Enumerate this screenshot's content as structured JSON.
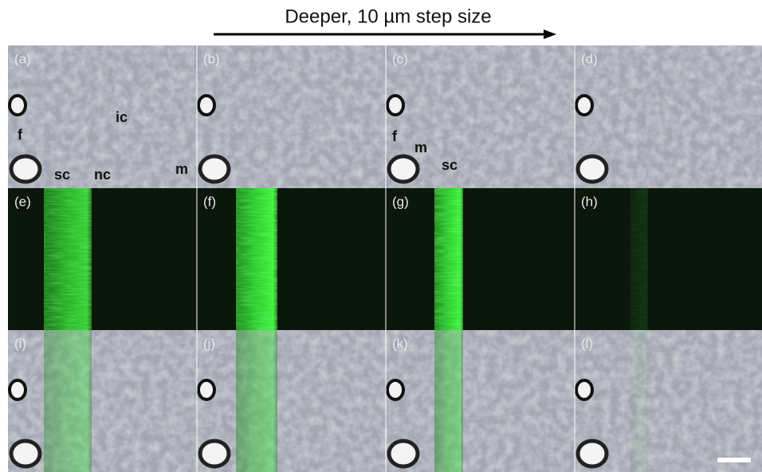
{
  "header": {
    "title": "Deeper, 10 µm step size"
  },
  "panels": [
    {
      "label": "(a)",
      "annotations": [
        "f",
        "ic",
        "sc",
        "nc",
        "m"
      ]
    },
    {
      "label": "(b)"
    },
    {
      "label": "(c)",
      "annotations": [
        "f",
        "m",
        "sc"
      ]
    },
    {
      "label": "(d)"
    },
    {
      "label": "(e)"
    },
    {
      "label": "(f)"
    },
    {
      "label": "(g)"
    },
    {
      "label": "(h)"
    },
    {
      "label": "(i)"
    },
    {
      "label": "(j)"
    },
    {
      "label": "(k)"
    },
    {
      "label": "(l)"
    }
  ]
}
